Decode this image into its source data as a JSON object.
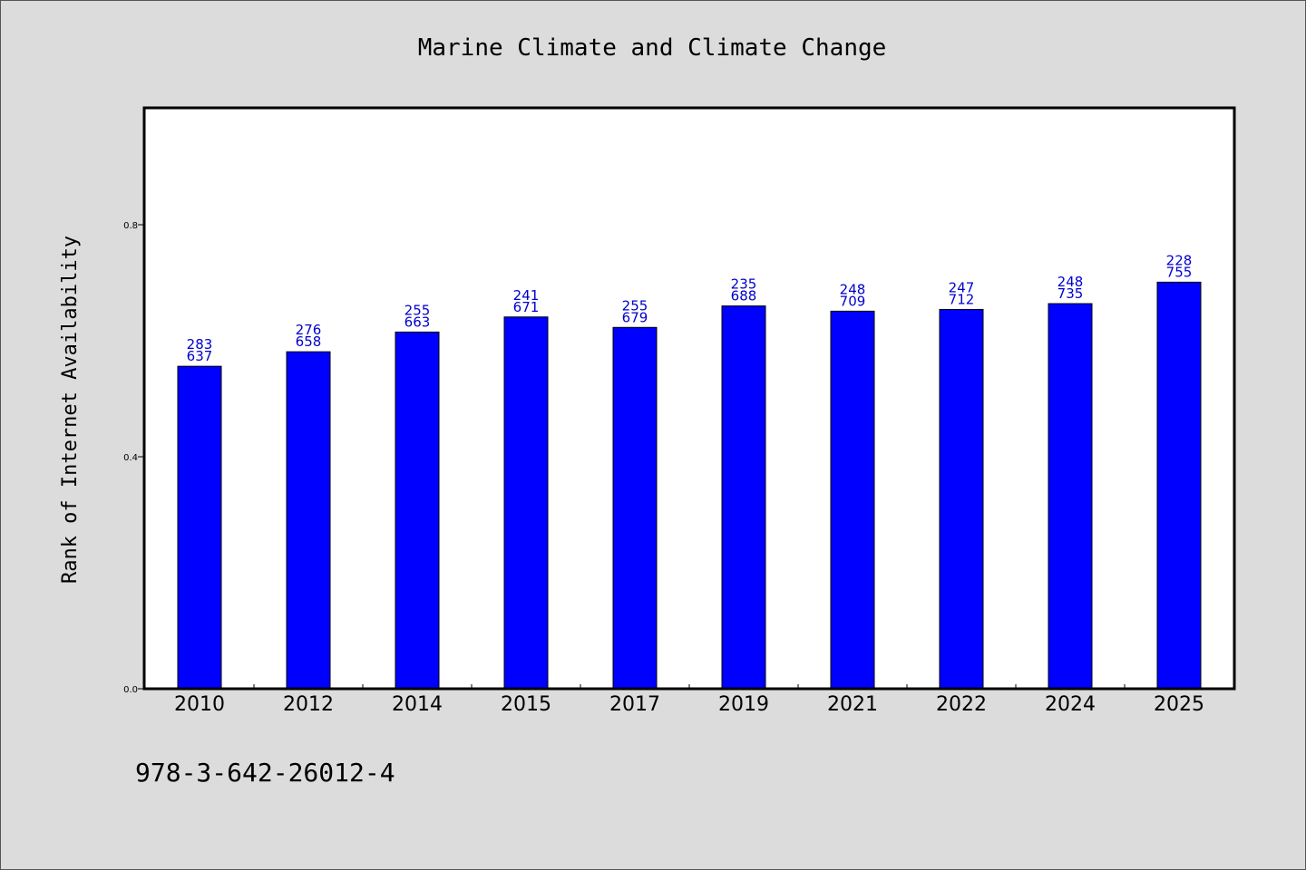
{
  "chart_data": {
    "type": "bar",
    "title": "Marine Climate and Climate Change",
    "ylabel": "Rank of Internet Availability",
    "xlabel": "",
    "categories": [
      "2010",
      "2012",
      "2014",
      "2015",
      "2017",
      "2019",
      "2021",
      "2022",
      "2024",
      "2025"
    ],
    "values": [
      0.556,
      0.581,
      0.615,
      0.641,
      0.623,
      0.66,
      0.651,
      0.654,
      0.664,
      0.701
    ],
    "data_labels": [
      [
        "283",
        "637"
      ],
      [
        "276",
        "658"
      ],
      [
        "255",
        "663"
      ],
      [
        "241",
        "671"
      ],
      [
        "255",
        "679"
      ],
      [
        "235",
        "688"
      ],
      [
        "248",
        "709"
      ],
      [
        "247",
        "712"
      ],
      [
        "248",
        "735"
      ],
      [
        "228",
        "755"
      ]
    ],
    "ylim": [
      0.0,
      1.0
    ],
    "yticks": [
      "0.0",
      "0.4",
      "0.8"
    ],
    "ytick_values": [
      0.0,
      0.4,
      0.8
    ],
    "bar_color": "#0000ff",
    "label_color": "#0000cc",
    "background": "#dcdcdc",
    "plot_background": "#ffffff",
    "grid": false,
    "legend": "none"
  },
  "footer": {
    "isbn": "978-3-642-26012-4"
  }
}
